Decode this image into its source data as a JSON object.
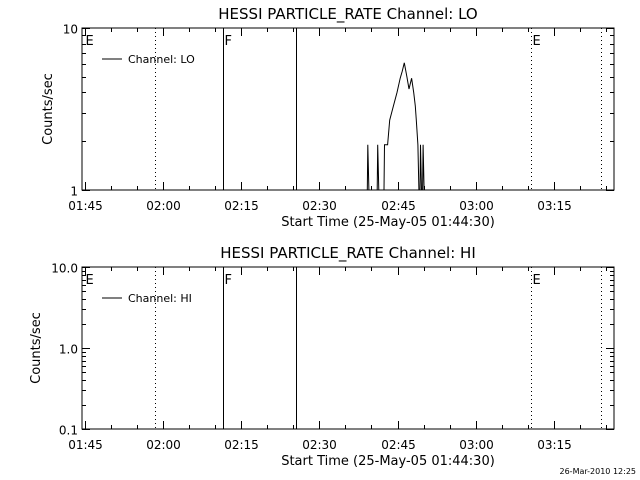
{
  "footer": {
    "timestamp": "26-Mar-2010 12:25"
  },
  "chart_data": [
    {
      "type": "line",
      "title": "HESSI PARTICLE_RATE Channel: LO",
      "xlabel": "Start Time (25-May-05 01:44:30)",
      "ylabel": "Counts/sec",
      "x_unit": "minutes after 01:44:30",
      "xlim": [
        0,
        102
      ],
      "ylim": [
        1,
        10
      ],
      "yscale": "log",
      "xticks": [
        {
          "x": 0.5,
          "label": "01:45"
        },
        {
          "x": 15.5,
          "label": "02:00"
        },
        {
          "x": 30.5,
          "label": "02:15"
        },
        {
          "x": 45.5,
          "label": "02:30"
        },
        {
          "x": 60.5,
          "label": "02:45"
        },
        {
          "x": 75.5,
          "label": "03:00"
        },
        {
          "x": 90.5,
          "label": "03:15"
        }
      ],
      "yticks": [
        {
          "y": 1,
          "label": "1"
        },
        {
          "y": 10,
          "label": "10"
        }
      ],
      "legend": {
        "label": "Channel: LO",
        "position": "top-left"
      },
      "markers": [
        {
          "x": 0.3,
          "style": "none",
          "label": "E"
        },
        {
          "x": 14.0,
          "style": "dotted",
          "label": ""
        },
        {
          "x": 27.0,
          "style": "solid",
          "label": "F"
        },
        {
          "x": 41.0,
          "style": "solid",
          "label": ""
        },
        {
          "x": 86.0,
          "style": "dotted",
          "label": "E"
        },
        {
          "x": 99.5,
          "style": "dotted",
          "label": ""
        }
      ],
      "series": [
        {
          "segments": [
            [
              [
                54.7,
                1
              ],
              [
                54.8,
                1.9
              ],
              [
                55.0,
                1
              ]
            ],
            [
              [
                56.6,
                1
              ],
              [
                56.7,
                1.9
              ],
              [
                56.9,
                1
              ]
            ],
            [
              [
                57.9,
                1
              ],
              [
                58.0,
                1.9
              ],
              [
                58.6,
                1.9
              ],
              [
                59.0,
                2.7
              ],
              [
                59.7,
                3.3
              ],
              [
                60.4,
                4.0
              ],
              [
                61.0,
                4.9
              ],
              [
                61.4,
                5.4
              ],
              [
                61.8,
                6.1
              ],
              [
                62.3,
                5.0
              ],
              [
                62.7,
                4.2
              ],
              [
                63.2,
                4.9
              ],
              [
                63.6,
                4.0
              ],
              [
                63.9,
                3.3
              ],
              [
                64.1,
                2.7
              ],
              [
                64.4,
                1.9
              ],
              [
                64.6,
                1
              ]
            ],
            [
              [
                64.8,
                1
              ],
              [
                64.9,
                1.9
              ],
              [
                65.1,
                1
              ]
            ],
            [
              [
                65.3,
                1
              ],
              [
                65.4,
                1.9
              ],
              [
                65.6,
                1
              ]
            ]
          ]
        }
      ]
    },
    {
      "type": "line",
      "title": "HESSI PARTICLE_RATE Channel: HI",
      "xlabel": "Start Time (25-May-05 01:44:30)",
      "ylabel": "Counts/sec",
      "x_unit": "minutes after 01:44:30",
      "xlim": [
        0,
        102
      ],
      "ylim": [
        0.1,
        10
      ],
      "yscale": "log",
      "xticks": [
        {
          "x": 0.5,
          "label": "01:45"
        },
        {
          "x": 15.5,
          "label": "02:00"
        },
        {
          "x": 30.5,
          "label": "02:15"
        },
        {
          "x": 45.5,
          "label": "02:30"
        },
        {
          "x": 60.5,
          "label": "02:45"
        },
        {
          "x": 75.5,
          "label": "03:00"
        },
        {
          "x": 90.5,
          "label": "03:15"
        }
      ],
      "yticks": [
        {
          "y": 0.1,
          "label": "0.1"
        },
        {
          "y": 1,
          "label": "1.0"
        },
        {
          "y": 10,
          "label": "10.0"
        }
      ],
      "legend": {
        "label": "Channel: HI",
        "position": "top-left"
      },
      "markers": [
        {
          "x": 0.3,
          "style": "none",
          "label": "E"
        },
        {
          "x": 14.0,
          "style": "dotted",
          "label": ""
        },
        {
          "x": 27.0,
          "style": "solid",
          "label": "F"
        },
        {
          "x": 41.0,
          "style": "solid",
          "label": ""
        },
        {
          "x": 86.0,
          "style": "dotted",
          "label": "E"
        },
        {
          "x": 99.5,
          "style": "dotted",
          "label": ""
        }
      ],
      "series": []
    }
  ]
}
